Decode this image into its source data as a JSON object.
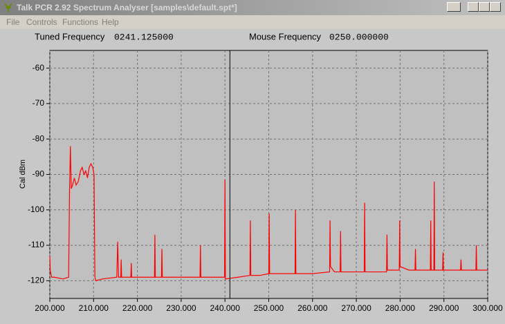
{
  "window": {
    "title": "Talk PCR 2.92 Spectrum Analyser [samples\\default.spt*]"
  },
  "menu": [
    "File",
    "Controls",
    "Functions",
    "Help"
  ],
  "header": {
    "tuned_label": "Tuned Frequency",
    "mouse_label": "Mouse Frequency",
    "mouse_value": "0250.000000"
  },
  "chart_data": {
    "type": "line",
    "y_label": "Cal dBm",
    "cursor": {
      "value": 241.125,
      "label": "0241.125000"
    },
    "color": "#ff0000",
    "grid": true,
    "xlim": [
      200,
      300
    ],
    "ylim": [
      -125,
      -55
    ],
    "xticks": [
      {
        "value": 200,
        "label": "200.000"
      },
      {
        "value": 210,
        "label": "210.000"
      },
      {
        "value": 220,
        "label": "220.000"
      },
      {
        "value": 230,
        "label": "230.000"
      },
      {
        "value": 240,
        "label": "240.000"
      },
      {
        "value": 250,
        "label": "250.000"
      },
      {
        "value": 260,
        "label": "260.000"
      },
      {
        "value": 270,
        "label": "270.000"
      },
      {
        "value": 280,
        "label": "280.000"
      },
      {
        "value": 290,
        "label": "290.000"
      },
      {
        "value": 300,
        "label": "300.000"
      }
    ],
    "yticks": [
      -120,
      -110,
      -100,
      -90,
      -80,
      -70,
      -60
    ],
    "x": [
      200,
      200.1,
      200.4,
      201,
      203,
      204.3,
      204.5,
      204.7,
      204.9,
      205.2,
      205.6,
      206.0,
      206.5,
      207.0,
      207.4,
      207.8,
      208.2,
      208.6,
      209.0,
      209.4,
      209.8,
      210.1,
      210.3,
      210.5,
      212,
      215.3,
      215.5,
      215.7,
      216.2,
      216.3,
      216.4,
      218.5,
      218.6,
      218.7,
      221,
      223.9,
      224.0,
      224.1,
      225.5,
      225.6,
      225.7,
      229,
      234.3,
      234.4,
      234.5,
      237,
      239.9,
      240.0,
      240.1,
      243,
      245.7,
      245.8,
      245.9,
      248,
      250.0,
      250.1,
      250.2,
      253,
      256.0,
      256.1,
      256.2,
      260,
      263.9,
      264.0,
      264.1,
      265,
      266.3,
      266.4,
      266.5,
      269,
      271.8,
      271.9,
      272.0,
      275,
      276.9,
      277.0,
      277.1,
      279.8,
      279.9,
      280.0,
      282,
      283.4,
      283.5,
      283.6,
      286.9,
      287.0,
      287.1,
      287.7,
      287.8,
      287.9,
      289.7,
      289.8,
      289.9,
      292,
      293.8,
      293.9,
      294.0,
      297.3,
      297.4,
      297.5,
      300
    ],
    "values": [
      -113,
      -117,
      -119,
      -119,
      -119.5,
      -119,
      -95,
      -82,
      -94,
      -93,
      -91,
      -93,
      -92,
      -89,
      -88,
      -90,
      -89,
      -91,
      -88,
      -87,
      -88,
      -90,
      -119,
      -120,
      -119.5,
      -119,
      -109,
      -119,
      -119,
      -114,
      -119,
      -119,
      -115,
      -119,
      -119,
      -119,
      -107,
      -119,
      -119,
      -111,
      -119,
      -119,
      -119,
      -110,
      -119,
      -119,
      -119,
      -91.5,
      -119.5,
      -119,
      -118.5,
      -103,
      -118.5,
      -118.5,
      -118,
      -101,
      -118,
      -118,
      -118,
      -100,
      -118,
      -118,
      -117.5,
      -103,
      -116,
      -117.5,
      -117.5,
      -106,
      -117.5,
      -117.5,
      -117.5,
      -98,
      -117.5,
      -117.5,
      -117.5,
      -107,
      -117,
      -117,
      -103,
      -116,
      -117,
      -117,
      -111,
      -117,
      -117,
      -103,
      -117,
      -117,
      -92,
      -117,
      -117,
      -112,
      -117,
      -117,
      -117,
      -114,
      -117,
      -117,
      -110,
      -117,
      -117
    ]
  }
}
